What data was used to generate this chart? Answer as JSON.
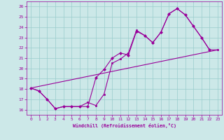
{
  "xlabel": "Windchill (Refroidissement éolien,°C)",
  "xlim": [
    -0.5,
    23.5
  ],
  "ylim": [
    15.5,
    26.5
  ],
  "yticks": [
    16,
    17,
    18,
    19,
    20,
    21,
    22,
    23,
    24,
    25,
    26
  ],
  "xticks": [
    0,
    1,
    2,
    3,
    4,
    5,
    6,
    7,
    8,
    9,
    10,
    11,
    12,
    13,
    14,
    15,
    16,
    17,
    18,
    19,
    20,
    21,
    22,
    23
  ],
  "bg_color": "#cce8e8",
  "line_color": "#990099",
  "grid_color": "#99cccc",
  "line1_x": [
    0,
    1,
    2,
    3,
    4,
    5,
    6,
    7,
    8,
    9,
    10,
    11,
    12,
    13,
    14,
    15,
    16,
    17,
    18,
    19,
    20,
    21,
    22
  ],
  "line1_y": [
    18.1,
    17.8,
    17.0,
    16.1,
    16.3,
    16.3,
    16.3,
    16.3,
    19.1,
    19.9,
    21.0,
    21.5,
    21.3,
    23.6,
    23.2,
    22.5,
    23.5,
    25.3,
    25.8,
    25.2,
    24.1,
    23.0,
    21.8
  ],
  "line2_x": [
    0,
    1,
    2,
    3,
    4,
    5,
    6,
    7,
    8,
    9,
    10,
    11,
    12,
    13,
    14,
    15,
    16,
    17,
    18,
    19,
    20,
    21,
    22,
    23
  ],
  "line2_y": [
    18.1,
    17.8,
    17.0,
    16.1,
    16.3,
    16.3,
    16.3,
    16.7,
    16.4,
    17.5,
    20.5,
    20.9,
    21.5,
    23.7,
    23.2,
    22.5,
    23.5,
    25.3,
    25.8,
    25.2,
    24.1,
    23.0,
    21.8,
    21.8
  ],
  "line3_x": [
    0,
    23
  ],
  "line3_y": [
    18.1,
    21.8
  ]
}
